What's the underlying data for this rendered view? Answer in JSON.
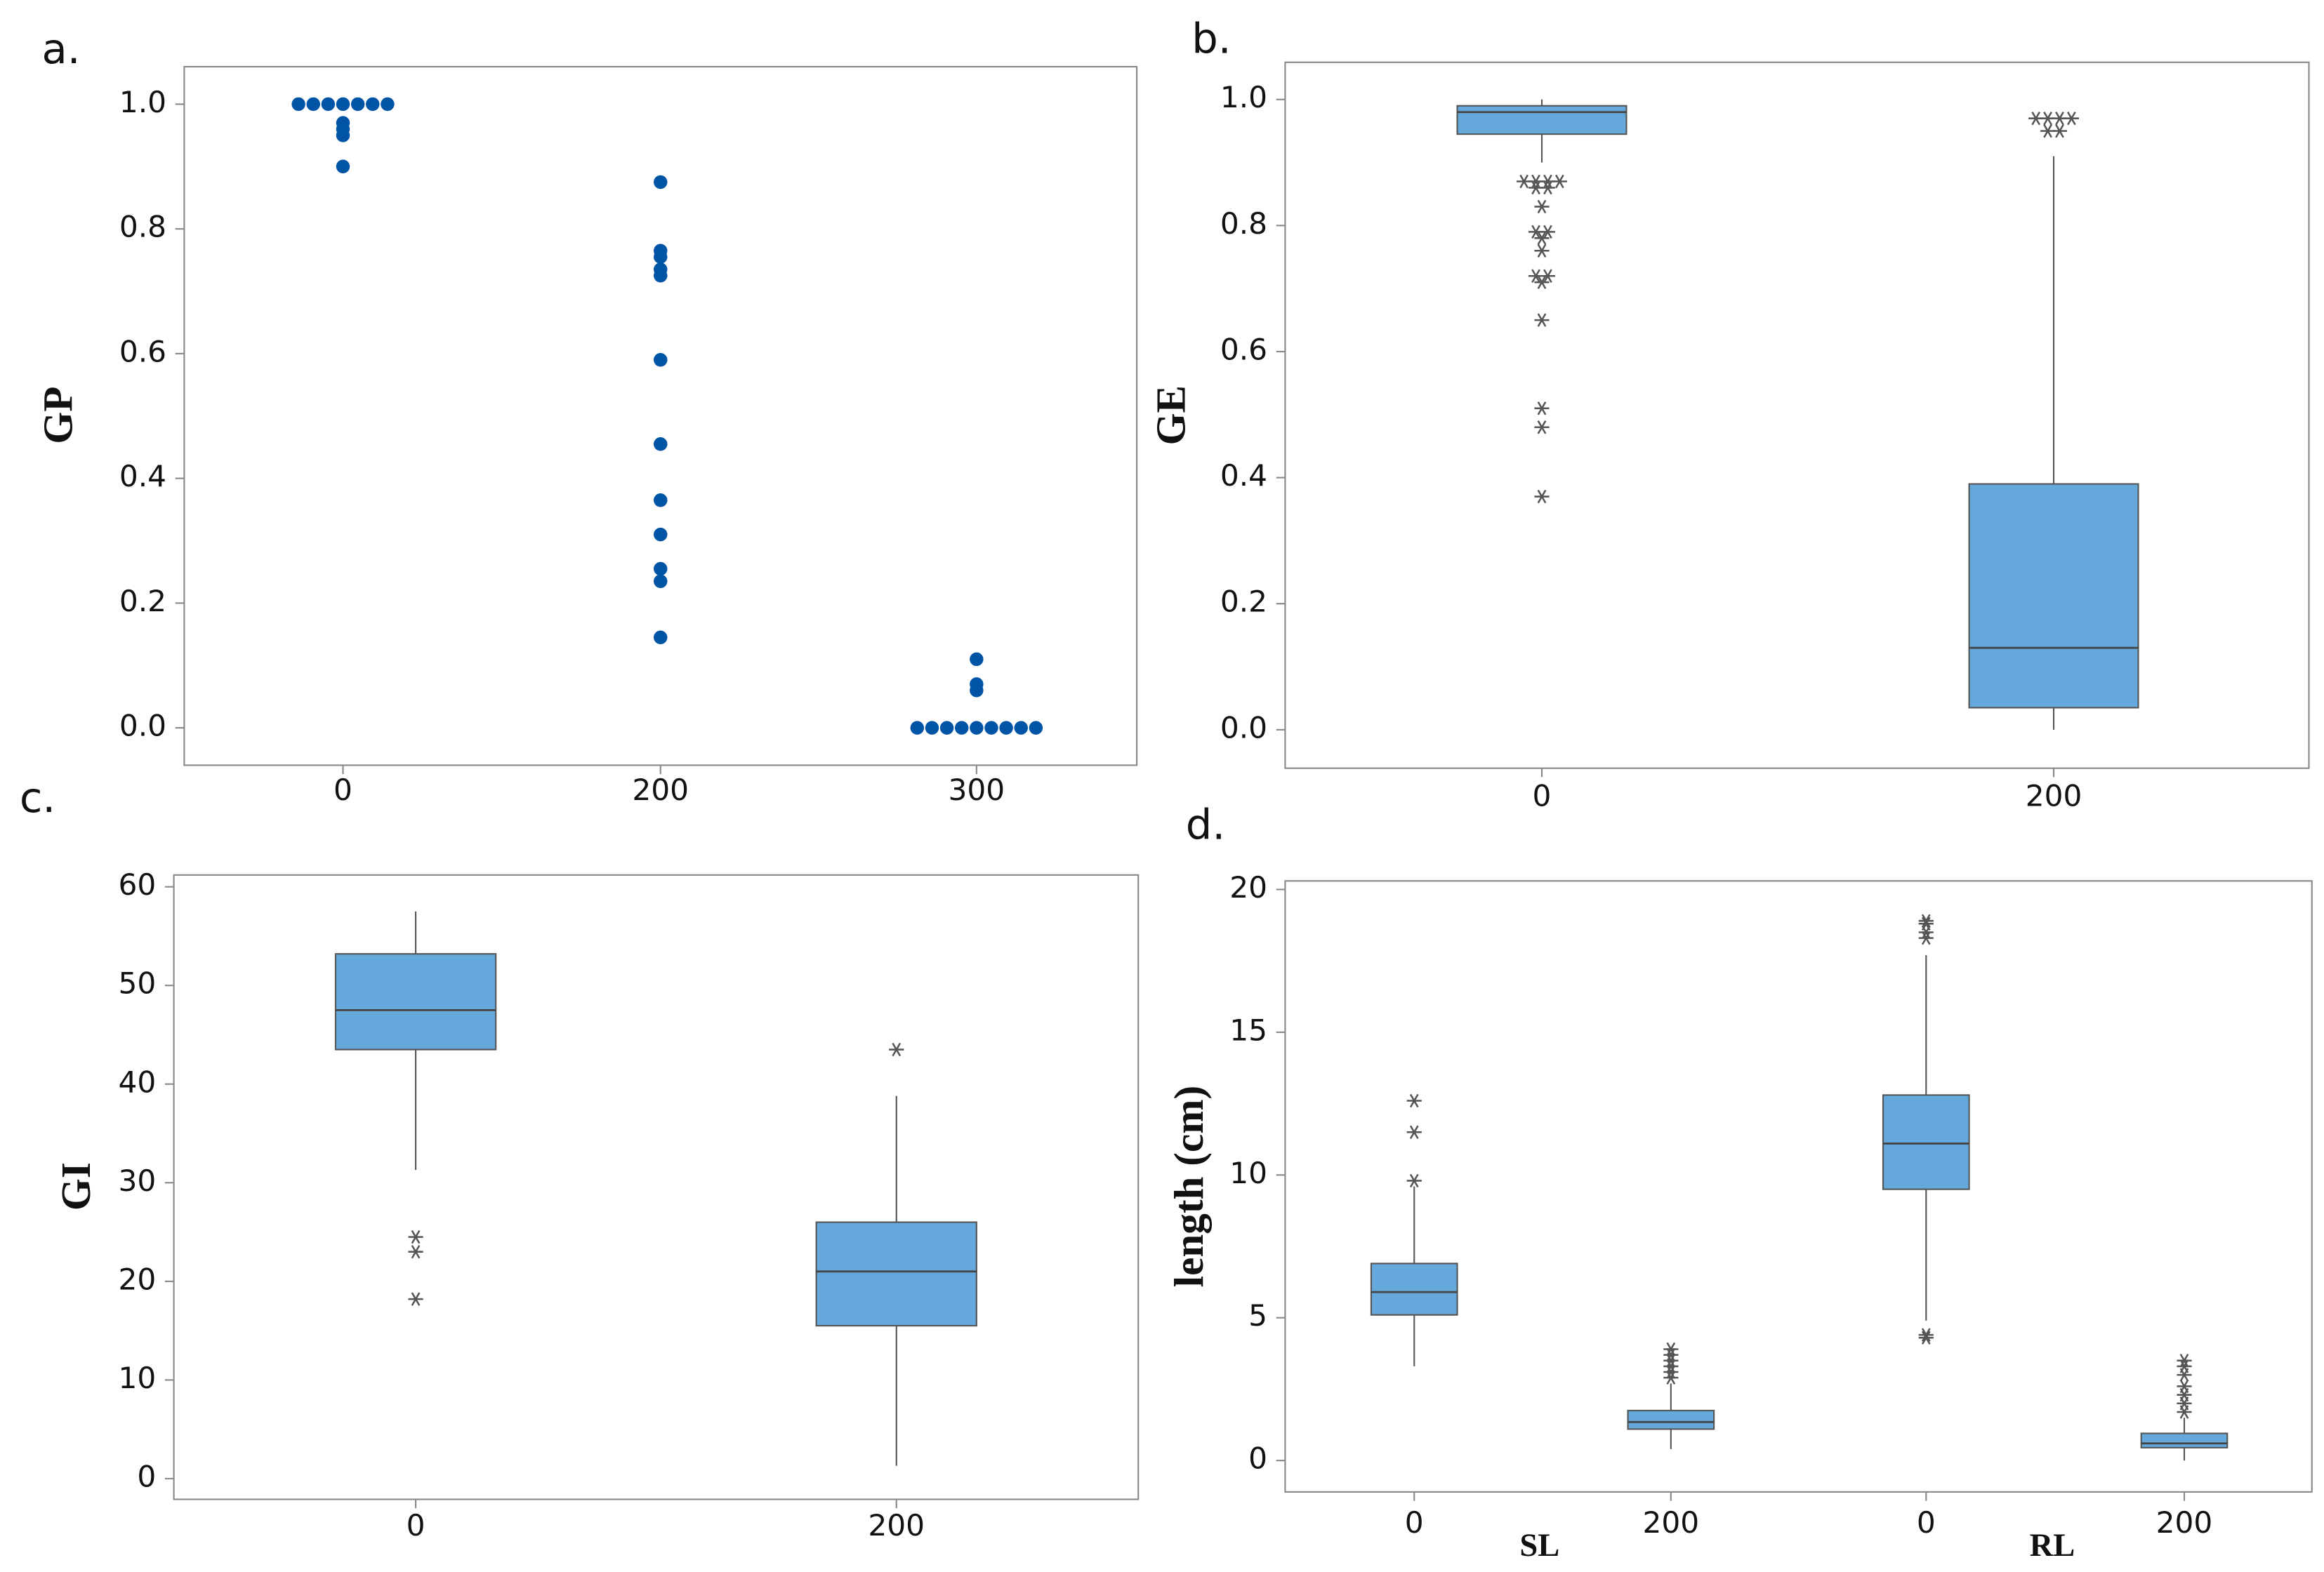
{
  "chart_data": [
    {
      "type": "dot",
      "label": "a.",
      "ylabel": "GP",
      "categories": [
        "0",
        "200",
        "300"
      ],
      "values": [
        [
          1,
          1,
          1,
          1,
          1,
          1,
          1,
          0.97,
          0.96,
          0.95,
          0.9
        ],
        [
          0.875,
          0.765,
          0.755,
          0.735,
          0.725,
          0.59,
          0.455,
          0.365,
          0.31,
          0.255,
          0.235,
          0.145
        ],
        [
          0.11,
          0.07,
          0.06,
          0,
          0,
          0,
          0,
          0,
          0,
          0,
          0,
          0
        ]
      ],
      "color": "#0054a6",
      "ylim": [
        -0.06,
        1.06
      ],
      "yticks": [
        {
          "value": 0,
          "label": "0.0"
        },
        0.2,
        0.4,
        0.6,
        0.8,
        {
          "value": 1,
          "label": "1.0"
        }
      ]
    },
    {
      "type": "box",
      "label": "b.",
      "ylabel": "GE",
      "categories": [
        "0",
        "200"
      ],
      "color": "#64a8dc",
      "boxes": [
        {
          "min": 0.9,
          "q1": 0.945,
          "median": 0.98,
          "q3": 0.99,
          "max": 1.0,
          "outliers": [
            0.87,
            0.87,
            0.87,
            0.87,
            0.86,
            0.86,
            0.83,
            0.79,
            0.79,
            0.78,
            0.76,
            0.72,
            0.72,
            0.71,
            0.65,
            0.51,
            0.48,
            0.37
          ]
        },
        {
          "min": 0,
          "q1": 0.035,
          "median": 0.13,
          "q3": 0.39,
          "max": 0.91,
          "outliers": [
            0.97,
            0.97,
            0.97,
            0.97,
            0.95,
            0.95
          ]
        }
      ],
      "ylim": [
        -0.061,
        1.059
      ],
      "yticks": [
        {
          "value": 0,
          "label": "0.0"
        },
        0.2,
        0.4,
        0.6,
        0.8,
        {
          "value": 1,
          "label": "1.0"
        }
      ]
    },
    {
      "type": "box",
      "label": "c.",
      "ylabel": "GI",
      "categories": [
        "0",
        "200"
      ],
      "color": "#64a8dc",
      "boxes": [
        {
          "min": 31.3,
          "q1": 43.5,
          "median": 47.5,
          "q3": 53.2,
          "max": 57.5,
          "outliers": [
            24.5,
            23,
            18.2
          ]
        },
        {
          "min": 1.3,
          "q1": 15.5,
          "median": 21,
          "q3": 26,
          "max": 38.8,
          "outliers": [
            43.5
          ]
        }
      ],
      "ylim": [
        -2.1,
        61.2
      ],
      "yticks": [
        0,
        10,
        20,
        30,
        40,
        50,
        60
      ]
    },
    {
      "type": "box",
      "label": "d.",
      "ylabel": "length (cm)",
      "categories": [
        "0",
        "200",
        "0",
        "200"
      ],
      "group_labels": [
        "SL",
        "RL"
      ],
      "color": "#64a8dc",
      "boxes": [
        {
          "min": 3.3,
          "q1": 5.1,
          "median": 5.9,
          "q3": 6.9,
          "max": 9.6,
          "outliers": [
            9.8,
            11.5,
            12.6
          ]
        },
        {
          "min": 0.4,
          "q1": 1.1,
          "median": 1.35,
          "q3": 1.75,
          "max": 2.7,
          "outliers": [
            2.9,
            3.1,
            3.3,
            3.5,
            3.7,
            3.9
          ]
        },
        {
          "min": 4.9,
          "q1": 9.5,
          "median": 11.1,
          "q3": 12.8,
          "max": 17.7,
          "outliers": [
            4.3,
            4.4,
            18.3,
            18.5,
            18.8,
            18.9
          ]
        },
        {
          "min": 0,
          "q1": 0.45,
          "median": 0.6,
          "q3": 0.95,
          "max": 1.5,
          "outliers": [
            1.7,
            2.0,
            2.3,
            2.6,
            3.0,
            3.3,
            3.5
          ]
        }
      ],
      "ylim": [
        -1.1,
        20.3
      ],
      "yticks": [
        0,
        5,
        10,
        15,
        20
      ]
    }
  ]
}
